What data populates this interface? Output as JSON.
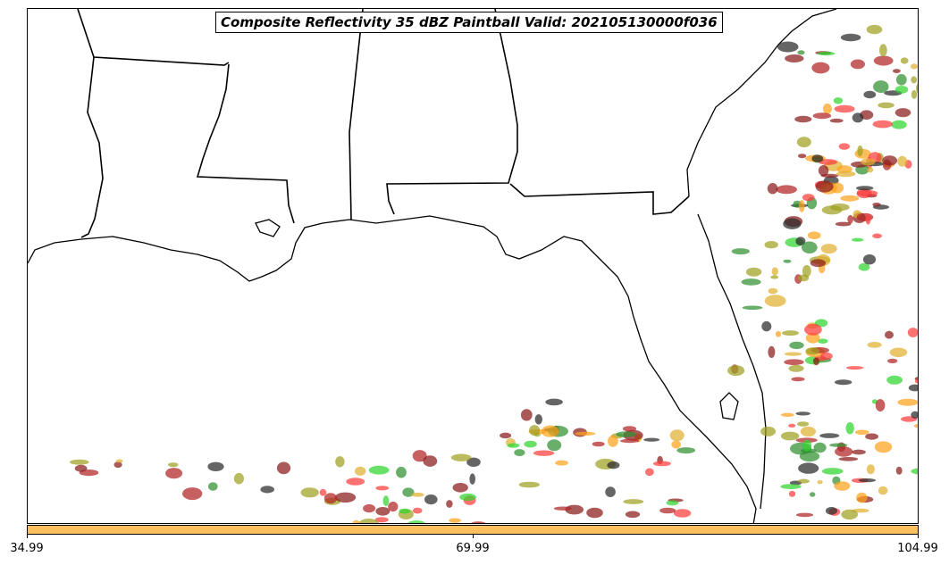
{
  "title": "Composite Reflectivity 35 dBZ Paintball Valid: 202105130000f036",
  "colorbar": {
    "color": "#ffc060",
    "ticks": [
      "34.99",
      "69.99",
      "104.99"
    ]
  },
  "member_colors": [
    "#ff3b3b",
    "#2fd62f",
    "#8b1a1a",
    "#a0a020",
    "#ffa21a",
    "#2a2a2a",
    "#2f8f2f",
    "#b22222",
    "#e0b030"
  ],
  "coast_color": "#000000"
}
